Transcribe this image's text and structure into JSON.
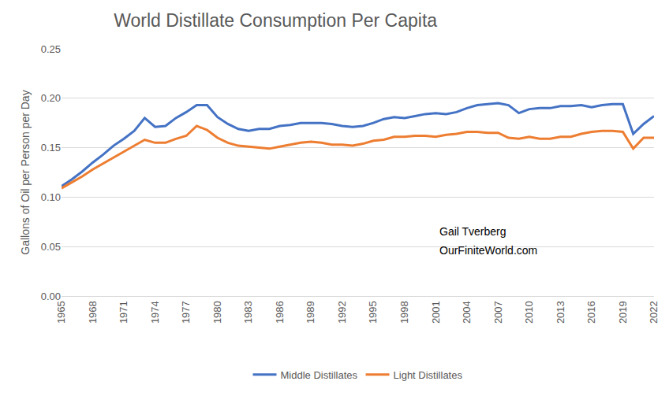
{
  "chart_data": {
    "type": "line",
    "title": "World Distillate Consumption Per Capita",
    "y_label": "Gallons of Oil per Person per Day",
    "annotations": [
      "Gail Tverberg",
      "OurFiniteWorld.com"
    ],
    "x": [
      1965,
      1966,
      1967,
      1968,
      1969,
      1970,
      1971,
      1972,
      1973,
      1974,
      1975,
      1976,
      1977,
      1978,
      1979,
      1980,
      1981,
      1982,
      1983,
      1984,
      1985,
      1986,
      1987,
      1988,
      1989,
      1990,
      1991,
      1992,
      1993,
      1994,
      1995,
      1996,
      1997,
      1998,
      1999,
      2000,
      2001,
      2002,
      2003,
      2004,
      2005,
      2006,
      2007,
      2008,
      2009,
      2010,
      2011,
      2012,
      2013,
      2014,
      2015,
      2016,
      2017,
      2018,
      2019,
      2020,
      2021,
      2022
    ],
    "series": [
      {
        "name": "Middle Distillates",
        "color": "#4472c4",
        "values": [
          0.111,
          0.118,
          0.126,
          0.135,
          0.143,
          0.152,
          0.159,
          0.167,
          0.18,
          0.171,
          0.172,
          0.18,
          0.186,
          0.193,
          0.193,
          0.181,
          0.174,
          0.169,
          0.167,
          0.169,
          0.169,
          0.172,
          0.173,
          0.175,
          0.175,
          0.175,
          0.174,
          0.172,
          0.171,
          0.172,
          0.175,
          0.179,
          0.181,
          0.18,
          0.182,
          0.184,
          0.185,
          0.184,
          0.186,
          0.19,
          0.193,
          0.194,
          0.195,
          0.193,
          0.185,
          0.189,
          0.19,
          0.19,
          0.192,
          0.192,
          0.193,
          0.191,
          0.193,
          0.194,
          0.194,
          0.164,
          0.174,
          0.182
        ]
      },
      {
        "name": "Light Distillates",
        "color": "#ed7d31",
        "values": [
          0.109,
          0.115,
          0.121,
          0.128,
          0.134,
          0.14,
          0.146,
          0.152,
          0.158,
          0.155,
          0.155,
          0.159,
          0.162,
          0.172,
          0.168,
          0.16,
          0.155,
          0.152,
          0.151,
          0.15,
          0.149,
          0.151,
          0.153,
          0.155,
          0.156,
          0.155,
          0.153,
          0.153,
          0.152,
          0.154,
          0.157,
          0.158,
          0.161,
          0.161,
          0.162,
          0.162,
          0.161,
          0.163,
          0.164,
          0.166,
          0.166,
          0.165,
          0.165,
          0.16,
          0.159,
          0.161,
          0.159,
          0.159,
          0.161,
          0.161,
          0.164,
          0.166,
          0.167,
          0.167,
          0.166,
          0.149,
          0.16,
          0.16
        ]
      }
    ],
    "xlim": [
      1965,
      2022
    ],
    "xticks": [
      1965,
      1968,
      1971,
      1974,
      1977,
      1980,
      1983,
      1986,
      1989,
      1992,
      1995,
      1998,
      2001,
      2004,
      2007,
      2010,
      2013,
      2016,
      2019,
      2022
    ],
    "ylim": [
      0,
      0.25
    ],
    "yticks": [
      {
        "value": 0,
        "label": "0.00"
      },
      0.05,
      {
        "value": 0.1,
        "label": "0.10"
      },
      0.15,
      {
        "value": 0.2,
        "label": "0.20"
      },
      0.25
    ],
    "grid": true,
    "legend": "bottom"
  }
}
